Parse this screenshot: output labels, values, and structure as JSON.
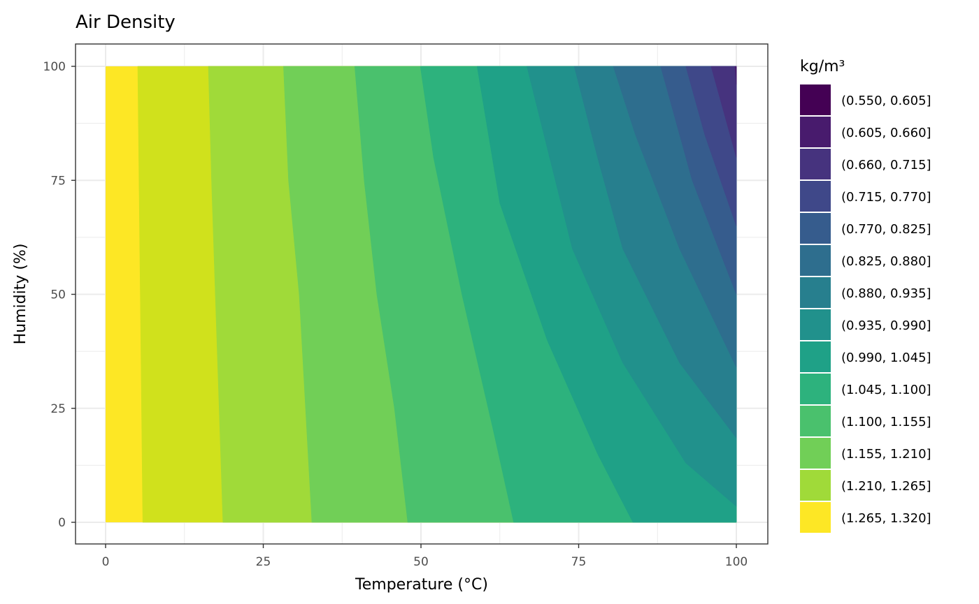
{
  "chart_data": {
    "type": "filled-contour",
    "title": "Air Density",
    "xlabel": "Temperature (°C)",
    "ylabel": "Humidity (%)",
    "xlim": [
      0,
      100
    ],
    "ylim": [
      0,
      100
    ],
    "x_ticks": [
      0,
      25,
      50,
      75,
      100
    ],
    "y_ticks": [
      0,
      25,
      50,
      75,
      100
    ],
    "grid": true,
    "legend_position": "right",
    "legend_title": "kg/m³",
    "levels": [
      {
        "label": "(0.550, 0.605]",
        "color": "#440154"
      },
      {
        "label": "(0.605, 0.660]",
        "color": "#481B6D"
      },
      {
        "label": "(0.660, 0.715]",
        "color": "#46337E"
      },
      {
        "label": "(0.715, 0.770]",
        "color": "#3F4889"
      },
      {
        "label": "(0.770, 0.825]",
        "color": "#365C8D"
      },
      {
        "label": "(0.825, 0.880]",
        "color": "#2E6E8E"
      },
      {
        "label": "(0.880, 0.935]",
        "color": "#277F8E"
      },
      {
        "label": "(0.935, 0.990]",
        "color": "#21918C"
      },
      {
        "label": "(0.990, 1.045]",
        "color": "#1FA187"
      },
      {
        "label": "(1.045, 1.100]",
        "color": "#2DB27D"
      },
      {
        "label": "(1.100, 1.155]",
        "color": "#4AC16D"
      },
      {
        "label": "(1.155, 1.210]",
        "color": "#71CF57"
      },
      {
        "label": "(1.210, 1.265]",
        "color": "#A0DA39"
      },
      {
        "label": "(1.265, 1.320]",
        "color": "#D0E11C"
      }
    ],
    "contours": [
      {
        "level": 1.265,
        "points": [
          [
            5.9,
            0
          ],
          [
            5.7,
            25
          ],
          [
            5.5,
            50
          ],
          [
            5.3,
            75
          ],
          [
            5.1,
            100
          ]
        ]
      },
      {
        "level": 1.21,
        "points": [
          [
            18.6,
            0
          ],
          [
            18.0,
            25
          ],
          [
            17.4,
            50
          ],
          [
            16.8,
            75
          ],
          [
            16.3,
            100
          ]
        ]
      },
      {
        "level": 1.155,
        "points": [
          [
            32.7,
            0
          ],
          [
            30.7,
            50
          ],
          [
            29.0,
            75
          ],
          [
            28.2,
            100
          ]
        ]
      },
      {
        "level": 1.1,
        "points": [
          [
            47.9,
            0
          ],
          [
            45.8,
            25
          ],
          [
            43.0,
            50
          ],
          [
            41.0,
            75
          ],
          [
            39.5,
            100
          ]
        ]
      },
      {
        "level": 1.045,
        "points": [
          [
            64.7,
            0
          ],
          [
            61.5,
            20
          ],
          [
            56.5,
            50
          ],
          [
            52.0,
            80
          ],
          [
            49.9,
            100
          ]
        ]
      },
      {
        "level": 0.99,
        "points": [
          [
            83.6,
            0
          ],
          [
            78.0,
            15
          ],
          [
            70.0,
            40
          ],
          [
            62.5,
            70
          ],
          [
            58.9,
            100
          ]
        ]
      },
      {
        "level": 0.935,
        "points": [
          [
            100,
            3.5
          ],
          [
            92.0,
            13
          ],
          [
            82.0,
            35
          ],
          [
            74.0,
            60
          ],
          [
            66.8,
            100
          ]
        ]
      },
      {
        "level": 0.88,
        "points": [
          [
            100,
            18.5
          ],
          [
            91.0,
            35
          ],
          [
            82.0,
            60
          ],
          [
            78.0,
            80
          ],
          [
            74.3,
            100
          ]
        ]
      },
      {
        "level": 0.825,
        "points": [
          [
            100,
            34.0
          ],
          [
            91.0,
            60
          ],
          [
            84.0,
            85
          ],
          [
            80.5,
            100
          ]
        ]
      },
      {
        "level": 0.77,
        "points": [
          [
            100,
            50.0
          ],
          [
            93.0,
            75
          ],
          [
            88.0,
            100
          ]
        ]
      },
      {
        "level": 0.715,
        "points": [
          [
            100,
            65.0
          ],
          [
            95.0,
            85
          ],
          [
            92.0,
            100
          ]
        ]
      },
      {
        "level": 0.66,
        "points": [
          [
            100,
            80.0
          ],
          [
            96.0,
            100
          ]
        ]
      },
      {
        "level": 0.605,
        "points": [
          [
            100,
            96.0
          ],
          [
            99.8,
            100
          ]
        ]
      }
    ]
  }
}
